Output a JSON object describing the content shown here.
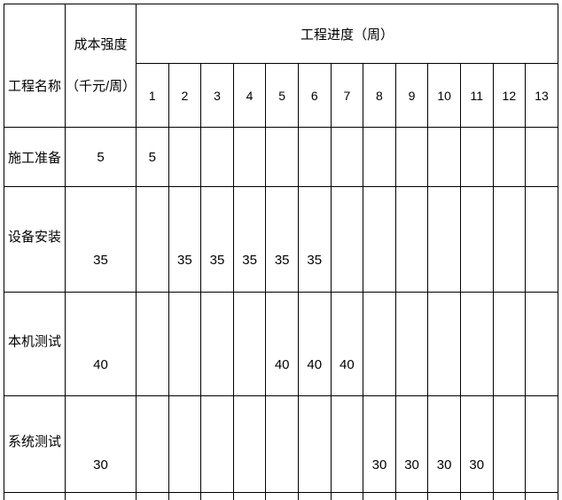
{
  "colors": {
    "border": "#000000",
    "background": "#ffffff",
    "text": "#000000"
  },
  "table": {
    "name_column_header": "工程名称",
    "cost_column_header_line1": "成本强度",
    "cost_column_header_line2": "（千元/周）",
    "progress_header": "工程进度（周）",
    "week_numbers": [
      "1",
      "2",
      "3",
      "4",
      "5",
      "6",
      "7",
      "8",
      "9",
      "10",
      "11",
      "12",
      "13"
    ],
    "rows": [
      {
        "name": "施工准备",
        "cost": "5",
        "values": [
          "5",
          "",
          "",
          "",
          "",
          "",
          "",
          "",
          "",
          "",
          "",
          "",
          ""
        ]
      },
      {
        "name": "设备安装",
        "cost": "35",
        "values": [
          "",
          "35",
          "35",
          "35",
          "35",
          "35",
          "",
          "",
          "",
          "",
          "",
          "",
          ""
        ]
      },
      {
        "name": "本机测试",
        "cost": "40",
        "values": [
          "",
          "",
          "",
          "",
          "40",
          "40",
          "40",
          "",
          "",
          "",
          "",
          "",
          ""
        ]
      },
      {
        "name": "系统测试",
        "cost": "30",
        "values": [
          "",
          "",
          "",
          "",
          "",
          "",
          "",
          "30",
          "30",
          "30",
          "30",
          "",
          ""
        ]
      }
    ]
  }
}
